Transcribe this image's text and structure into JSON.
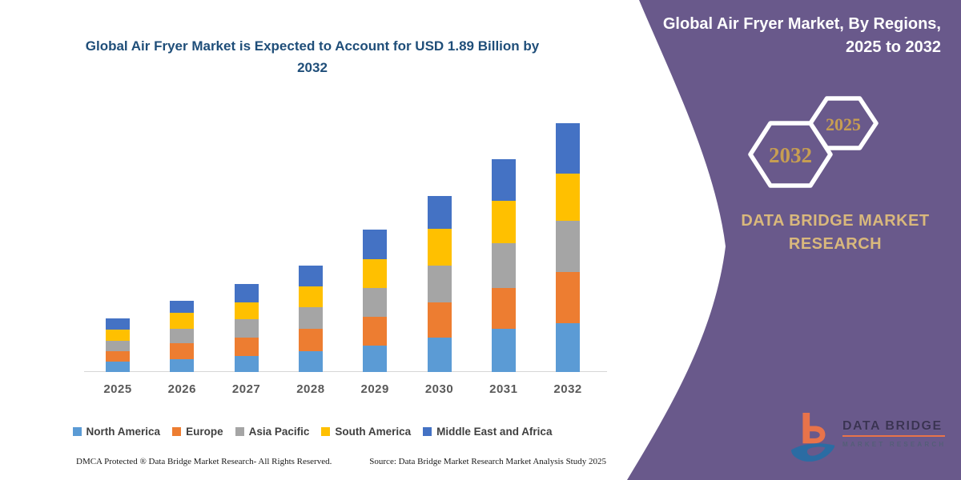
{
  "colors": {
    "panel_purple": "#69598B",
    "title_blue": "#1F4E79",
    "hex_gold": "#C79E52",
    "brand_gold": "#D9B87C",
    "axis_text": "#595959",
    "legend_text": "#404040",
    "logo_orange": "#E8734A",
    "logo_blue": "#2B6CA3"
  },
  "chart_data": {
    "type": "bar",
    "stacked": true,
    "title": "Global Air Fryer Market is Expected to Account for USD 1.89 Billion by 2032",
    "unit": "USD Billion",
    "categories": [
      "2025",
      "2026",
      "2027",
      "2028",
      "2029",
      "2030",
      "2031",
      "2032"
    ],
    "series": [
      {
        "name": "North America",
        "color": "#5B9BD5",
        "values": [
          0.08,
          0.1,
          0.12,
          0.16,
          0.2,
          0.26,
          0.33,
          0.37
        ]
      },
      {
        "name": "Europe",
        "color": "#ED7D31",
        "values": [
          0.08,
          0.12,
          0.14,
          0.17,
          0.22,
          0.27,
          0.31,
          0.39
        ]
      },
      {
        "name": "Asia Pacific",
        "color": "#A5A5A5",
        "values": [
          0.08,
          0.11,
          0.14,
          0.16,
          0.22,
          0.28,
          0.34,
          0.39
        ]
      },
      {
        "name": "South America",
        "color": "#FFC000",
        "values": [
          0.08,
          0.12,
          0.13,
          0.16,
          0.22,
          0.28,
          0.32,
          0.36
        ]
      },
      {
        "name": "Middle East and Africa",
        "color": "#4472C4",
        "values": [
          0.09,
          0.09,
          0.14,
          0.16,
          0.22,
          0.25,
          0.32,
          0.38
        ]
      }
    ],
    "totals": [
      0.41,
      0.54,
      0.67,
      0.81,
      1.08,
      1.34,
      1.62,
      1.89
    ],
    "ylim": [
      0,
      2.0
    ],
    "grid": false,
    "legend_position": "bottom"
  },
  "footer": {
    "dmca": "DMCA Protected ® Data Bridge Market Research-  All Rights Reserved.",
    "source": "Source: Data Bridge Market Research  Market Analysis Study 2025"
  },
  "panel": {
    "title": "Global Air Fryer Market, By Regions, 2025 to 2032",
    "hexagon_year_back": "2032",
    "hexagon_year_front": "2025",
    "brand_name": "DATA BRIDGE MARKET RESEARCH",
    "logo_text_primary": "DATA BRIDGE",
    "logo_text_secondary": "MARKET RESEARCH"
  }
}
